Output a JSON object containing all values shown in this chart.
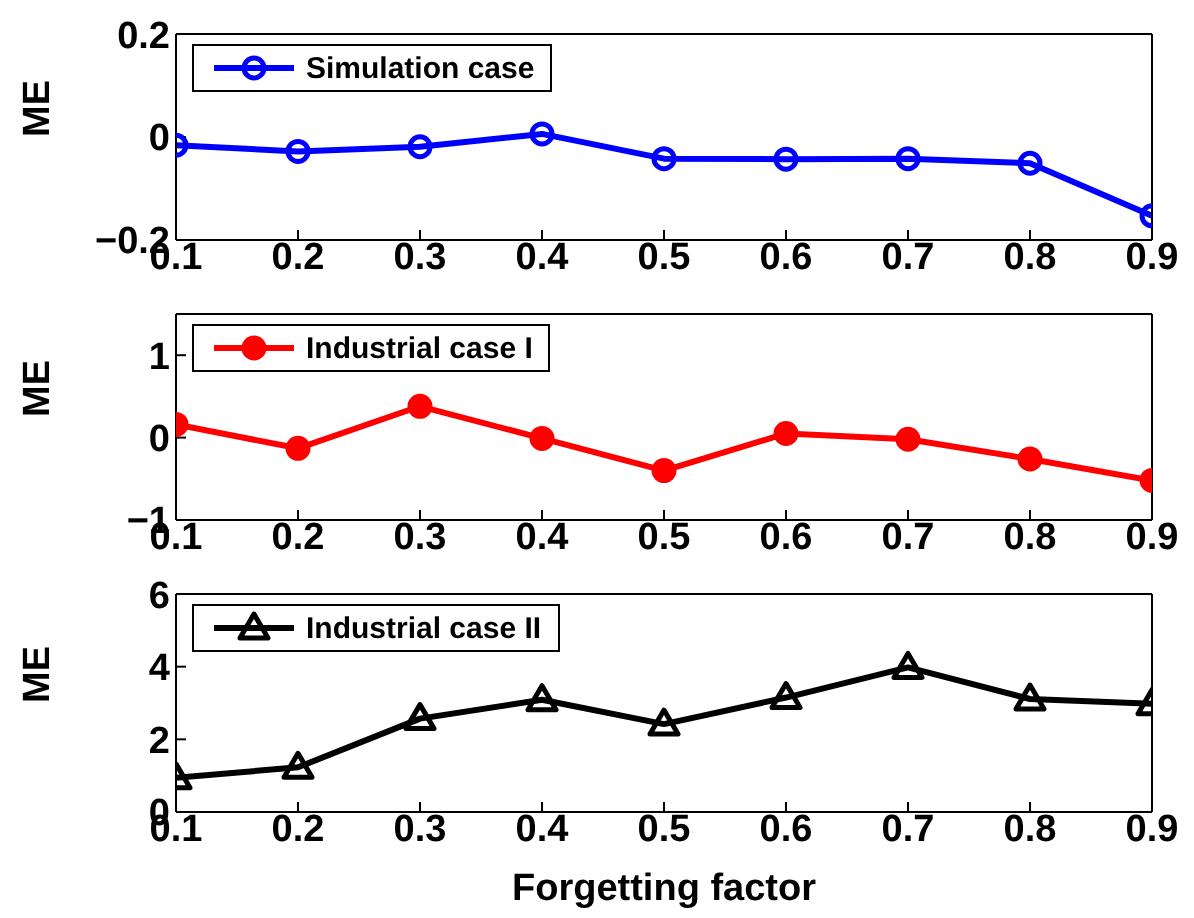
{
  "chart_data": [
    {
      "type": "line",
      "ylabel": "ME",
      "x": [
        0.1,
        0.2,
        0.3,
        0.4,
        0.5,
        0.6,
        0.7,
        0.8,
        0.9
      ],
      "xlim": [
        0.1,
        0.9
      ],
      "xticks": [
        0.1,
        0.2,
        0.3,
        0.4,
        0.5,
        0.6,
        0.7,
        0.8,
        0.9
      ],
      "ylim": [
        -0.2,
        0.2
      ],
      "yticks": [
        {
          "value": -0.2,
          "label": "−0.2"
        },
        0,
        0.2
      ],
      "legend": "top left",
      "marker": "circle",
      "grid": false,
      "series": [
        {
          "name": "Simulation case",
          "color": "#0000ff",
          "values": [
            -0.016,
            -0.028,
            -0.019,
            0.006,
            -0.042,
            -0.043,
            -0.042,
            -0.051,
            -0.153
          ]
        }
      ]
    },
    {
      "type": "line",
      "ylabel": "ME",
      "x": [
        0.1,
        0.2,
        0.3,
        0.4,
        0.5,
        0.6,
        0.7,
        0.8,
        0.9
      ],
      "xlim": [
        0.1,
        0.9
      ],
      "xticks": [
        0.1,
        0.2,
        0.3,
        0.4,
        0.5,
        0.6,
        0.7,
        0.8,
        0.9
      ],
      "ylim": [
        -1,
        1.5
      ],
      "yticks": [
        {
          "value": -1,
          "label": "−1"
        },
        0,
        1
      ],
      "legend": "top left",
      "marker": "circle",
      "grid": false,
      "series": [
        {
          "name": "Industrial case I",
          "color": "#ff0000",
          "values": [
            0.16,
            -0.13,
            0.38,
            -0.01,
            -0.4,
            0.05,
            -0.02,
            -0.26,
            -0.52
          ]
        }
      ]
    },
    {
      "type": "line",
      "ylabel": "ME",
      "xlabel": "Forgetting factor",
      "x": [
        0.1,
        0.2,
        0.3,
        0.4,
        0.5,
        0.6,
        0.7,
        0.8,
        0.9
      ],
      "xlim": [
        0.1,
        0.9
      ],
      "xticks": [
        0.1,
        0.2,
        0.3,
        0.4,
        0.5,
        0.6,
        0.7,
        0.8,
        0.9
      ],
      "ylim": [
        0,
        6
      ],
      "yticks": [
        0,
        2,
        4,
        6
      ],
      "legend": "top left",
      "marker": "triangle",
      "grid": false,
      "series": [
        {
          "name": "Industrial case II",
          "color": "#000000",
          "values": [
            0.94,
            1.23,
            2.57,
            3.09,
            2.42,
            3.15,
            3.98,
            3.11,
            2.98
          ]
        }
      ]
    }
  ]
}
